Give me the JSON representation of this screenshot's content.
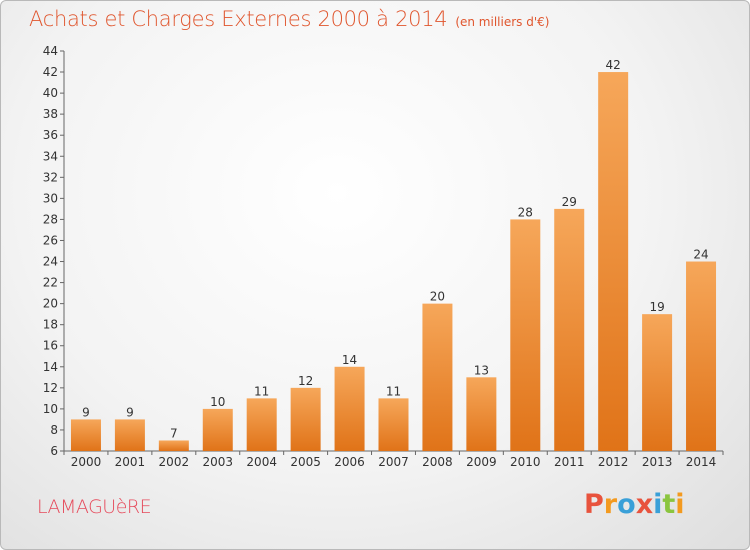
{
  "header": {
    "title": "Achats et Charges Externes 2000 à 2014",
    "unit": "(en milliers d'€)"
  },
  "footer": {
    "town": "LAMAGUèRE",
    "logo_text": "Proxiti",
    "logo_colors": [
      "#e8533d",
      "#f39a1f",
      "#3aa0d8",
      "#e8533d",
      "#3aa0d8",
      "#8bc53f",
      "#f39a1f"
    ]
  },
  "colors": {
    "bar_top": "#f6a75a",
    "bar_bottom": "#e07318",
    "text": "#333333",
    "axis": "#666666",
    "title": "#e0562e"
  },
  "chart_data": {
    "type": "bar",
    "categories": [
      "2000",
      "2001",
      "2002",
      "2003",
      "2004",
      "2005",
      "2006",
      "2007",
      "2008",
      "2009",
      "2010",
      "2011",
      "2012",
      "2013",
      "2014"
    ],
    "values": [
      9,
      9,
      7,
      10,
      11,
      12,
      14,
      11,
      20,
      13,
      28,
      29,
      42,
      19,
      24
    ],
    "ylim": [
      6,
      44
    ],
    "yticks": [
      6,
      8,
      10,
      12,
      14,
      16,
      18,
      20,
      22,
      24,
      26,
      28,
      30,
      32,
      34,
      36,
      38,
      40,
      42,
      44
    ],
    "grid": false,
    "legend": "none"
  }
}
